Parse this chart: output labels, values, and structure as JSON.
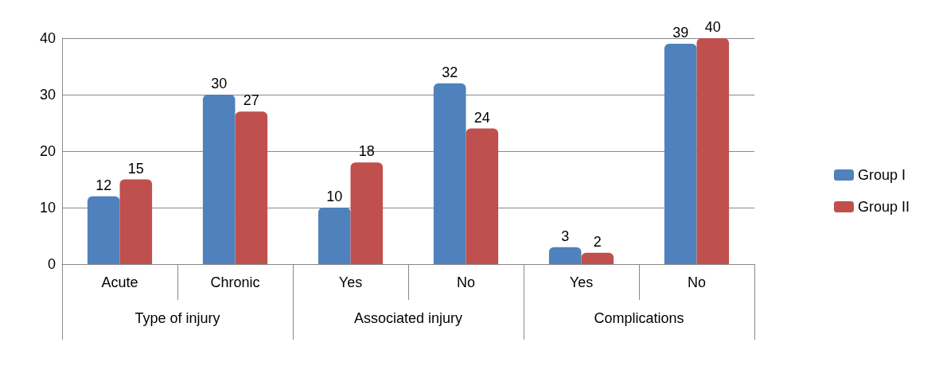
{
  "chart_data": {
    "type": "bar",
    "categories": [
      "Acute",
      "Chronic",
      "Yes",
      "No",
      "Yes",
      "No"
    ],
    "series": [
      {
        "name": "Group I",
        "color": "#4f81bd",
        "values": [
          12,
          30,
          10,
          32,
          3,
          39
        ]
      },
      {
        "name": "Group II",
        "color": "#c0504d",
        "values": [
          15,
          27,
          18,
          24,
          2,
          40
        ]
      }
    ],
    "annotations": [
      "Type of injury",
      "Associated injury",
      "Complications"
    ],
    "ylim": [
      0,
      40
    ],
    "yticks": [
      0,
      10,
      20,
      30,
      40
    ],
    "grid": "y",
    "legend": "right",
    "data_labels": true
  }
}
